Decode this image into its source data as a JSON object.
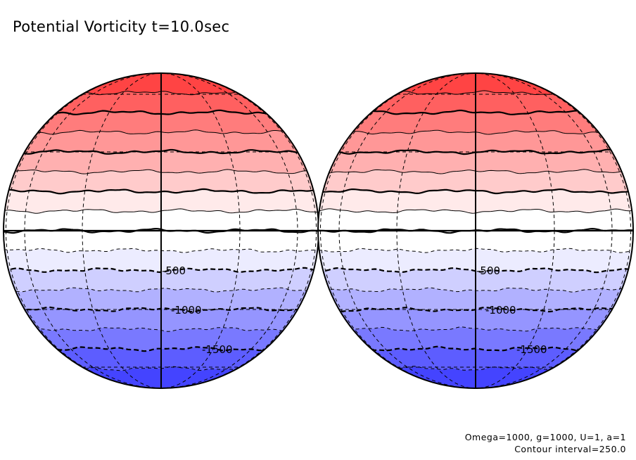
{
  "chart_data": {
    "type": "heatmap",
    "title": "Potential Vorticity t=10.0sec",
    "projection": "orthographic",
    "panels": [
      {
        "name": "hemisphere-left",
        "central_longitude_view": "front"
      },
      {
        "name": "hemisphere-right",
        "central_longitude_view": "back"
      }
    ],
    "contour_interval": 250.0,
    "levels": [
      2000,
      1750,
      1500,
      1250,
      1000,
      750,
      500,
      250,
      0,
      -250,
      -500,
      -750,
      -1000,
      -1250,
      -1500,
      -1750,
      -2000
    ],
    "band_colors": [
      "#ff4444",
      "#ff6060",
      "#ff7c7c",
      "#ff9797",
      "#ffb0b0",
      "#ffcbcb",
      "#ffeaea",
      "#ffffff",
      "#ffffff",
      "#ececff",
      "#cfcfff",
      "#b1b1ff",
      "#9595ff",
      "#7979ff",
      "#5d5dff",
      "#4444ff"
    ],
    "contour_labels": [
      "-500",
      "-1000",
      "-1500"
    ],
    "negative_contour_style": "dashed",
    "positive_contour_style": "solid",
    "graticule": "dashed"
  },
  "annotations": {
    "params": "Omega=1000, g=1000, U=1, a=1",
    "contour_interval_text": "Contour interval=250.0"
  }
}
